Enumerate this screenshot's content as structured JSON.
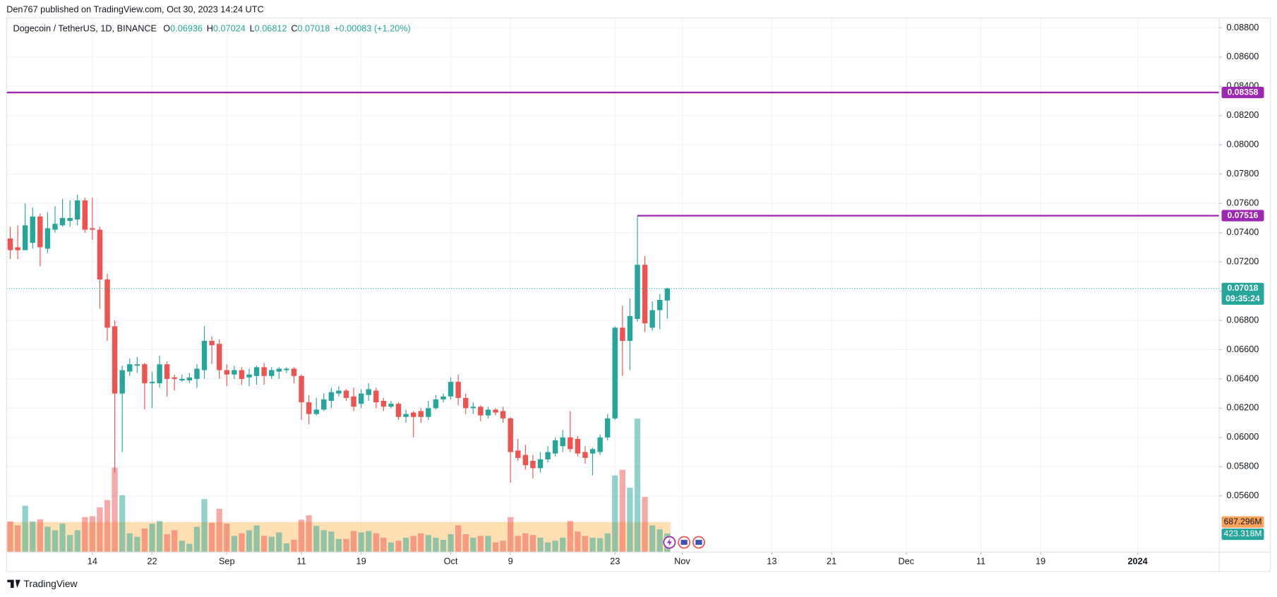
{
  "header": {
    "published": "Den767 published on TradingView.com, Oct 30, 2023 14:24 UTC",
    "symbol": "Dogecoin / TetherUS, 1D, BINANCE",
    "ohlc_labels": [
      "O",
      "H",
      "L",
      "C"
    ],
    "change": "+0.00083 (+1.20%)"
  },
  "footer": {
    "brand": "TradingView"
  },
  "chart_data": {
    "type": "candlestick",
    "up_color": "#26a69a",
    "down_color": "#ef5350",
    "x": [
      "2023-08-03",
      "2023-08-04",
      "2023-08-05",
      "2023-08-06",
      "2023-08-07",
      "2023-08-08",
      "2023-08-09",
      "2023-08-10",
      "2023-08-11",
      "2023-08-12",
      "2023-08-13",
      "2023-08-14",
      "2023-08-15",
      "2023-08-16",
      "2023-08-17",
      "2023-08-18",
      "2023-08-19",
      "2023-08-20",
      "2023-08-21",
      "2023-08-22",
      "2023-08-23",
      "2023-08-24",
      "2023-08-25",
      "2023-08-26",
      "2023-08-27",
      "2023-08-28",
      "2023-08-29",
      "2023-08-30",
      "2023-08-31",
      "2023-09-01",
      "2023-09-02",
      "2023-09-03",
      "2023-09-04",
      "2023-09-05",
      "2023-09-06",
      "2023-09-07",
      "2023-09-08",
      "2023-09-09",
      "2023-09-10",
      "2023-09-11",
      "2023-09-12",
      "2023-09-13",
      "2023-09-14",
      "2023-09-15",
      "2023-09-16",
      "2023-09-17",
      "2023-09-18",
      "2023-09-19",
      "2023-09-20",
      "2023-09-21",
      "2023-09-22",
      "2023-09-23",
      "2023-09-24",
      "2023-09-25",
      "2023-09-26",
      "2023-09-27",
      "2023-09-28",
      "2023-09-29",
      "2023-09-30",
      "2023-10-01",
      "2023-10-02",
      "2023-10-03",
      "2023-10-04",
      "2023-10-05",
      "2023-10-06",
      "2023-10-07",
      "2023-10-08",
      "2023-10-09",
      "2023-10-10",
      "2023-10-11",
      "2023-10-12",
      "2023-10-13",
      "2023-10-14",
      "2023-10-15",
      "2023-10-16",
      "2023-10-17",
      "2023-10-18",
      "2023-10-19",
      "2023-10-20",
      "2023-10-21",
      "2023-10-22",
      "2023-10-23",
      "2023-10-24",
      "2023-10-25",
      "2023-10-26",
      "2023-10-27",
      "2023-10-28",
      "2023-10-29",
      "2023-10-30"
    ],
    "open": [
      0.0736,
      0.073,
      0.0728,
      0.0733,
      0.0751,
      0.0729,
      0.0742,
      0.0745,
      0.0748,
      0.0749,
      0.0762,
      0.0743,
      0.0742,
      0.0708,
      0.0676,
      0.063,
      0.0645,
      0.0649,
      0.065,
      0.0637,
      0.0637,
      0.065,
      0.0641,
      0.0639,
      0.0639,
      0.064,
      0.0646,
      0.0666,
      0.0664,
      0.0646,
      0.0643,
      0.0646,
      0.0641,
      0.0642,
      0.0648,
      0.0642,
      0.0645,
      0.0646,
      0.0647,
      0.0642,
      0.0624,
      0.0616,
      0.0619,
      0.0625,
      0.063,
      0.0632,
      0.0628,
      0.0623,
      0.0629,
      0.0632,
      0.0625,
      0.0621,
      0.0623,
      0.0614,
      0.0617,
      0.0618,
      0.0614,
      0.062,
      0.0626,
      0.0628,
      0.0638,
      0.0627,
      0.062,
      0.0621,
      0.0615,
      0.0619,
      0.0618,
      0.0613,
      0.0591,
      0.0588,
      0.0584,
      0.0579,
      0.0585,
      0.0589,
      0.0594,
      0.06,
      0.0599,
      0.059,
      0.0589,
      0.059,
      0.06,
      0.0613,
      0.0675,
      0.0666,
      0.0681,
      0.0718,
      0.0675,
      0.0687,
      0.06936
    ],
    "high": [
      0.0744,
      0.0745,
      0.076,
      0.0757,
      0.0753,
      0.0754,
      0.0758,
      0.0763,
      0.0762,
      0.0766,
      0.0764,
      0.0764,
      0.0744,
      0.0712,
      0.068,
      0.0649,
      0.0654,
      0.0655,
      0.0651,
      0.0645,
      0.0656,
      0.0652,
      0.0643,
      0.0643,
      0.0644,
      0.065,
      0.0676,
      0.0669,
      0.0667,
      0.065,
      0.0649,
      0.0648,
      0.0647,
      0.0649,
      0.0651,
      0.0648,
      0.0648,
      0.0648,
      0.0648,
      0.0643,
      0.0629,
      0.0627,
      0.063,
      0.0634,
      0.0635,
      0.0633,
      0.0634,
      0.0633,
      0.0637,
      0.0634,
      0.0627,
      0.0625,
      0.0624,
      0.0619,
      0.0618,
      0.062,
      0.0625,
      0.0629,
      0.063,
      0.0641,
      0.0643,
      0.063,
      0.0624,
      0.0622,
      0.0621,
      0.062,
      0.0621,
      0.0614,
      0.0599,
      0.0595,
      0.0588,
      0.059,
      0.0594,
      0.06,
      0.0605,
      0.0618,
      0.0601,
      0.0594,
      0.0593,
      0.0602,
      0.0616,
      0.0676,
      0.069,
      0.0695,
      0.07516,
      0.0724,
      0.0693,
      0.0698,
      0.07024
    ],
    "low": [
      0.0722,
      0.0722,
      0.0728,
      0.0729,
      0.0717,
      0.0726,
      0.074,
      0.0744,
      0.0744,
      0.0745,
      0.074,
      0.0735,
      0.0688,
      0.0666,
      0.0576,
      0.059,
      0.0642,
      0.0644,
      0.0619,
      0.062,
      0.0634,
      0.0628,
      0.0632,
      0.0638,
      0.0637,
      0.0634,
      0.064,
      0.065,
      0.064,
      0.0635,
      0.064,
      0.0636,
      0.0635,
      0.0636,
      0.0636,
      0.064,
      0.064,
      0.0644,
      0.0637,
      0.0612,
      0.0609,
      0.0615,
      0.0618,
      0.062,
      0.0628,
      0.0625,
      0.0618,
      0.062,
      0.0625,
      0.062,
      0.0618,
      0.062,
      0.0612,
      0.061,
      0.06,
      0.061,
      0.0612,
      0.0619,
      0.0624,
      0.0626,
      0.0622,
      0.0616,
      0.0616,
      0.0611,
      0.0613,
      0.0615,
      0.061,
      0.0569,
      0.0584,
      0.0578,
      0.0572,
      0.0576,
      0.0583,
      0.0587,
      0.059,
      0.059,
      0.0587,
      0.0582,
      0.0574,
      0.0588,
      0.0598,
      0.0612,
      0.0642,
      0.0646,
      0.0679,
      0.0672,
      0.0673,
      0.0674,
      0.06812
    ],
    "close": [
      0.0728,
      0.0728,
      0.0745,
      0.0751,
      0.073,
      0.0743,
      0.0746,
      0.075,
      0.075,
      0.0762,
      0.0742,
      0.0742,
      0.0708,
      0.0675,
      0.063,
      0.0646,
      0.065,
      0.065,
      0.0637,
      0.0638,
      0.065,
      0.064,
      0.064,
      0.064,
      0.0641,
      0.0647,
      0.0666,
      0.0663,
      0.0646,
      0.0643,
      0.0646,
      0.064,
      0.0643,
      0.0648,
      0.0642,
      0.0646,
      0.0647,
      0.0647,
      0.0642,
      0.0624,
      0.0616,
      0.0619,
      0.0626,
      0.0631,
      0.0632,
      0.0627,
      0.0621,
      0.063,
      0.0633,
      0.0624,
      0.0621,
      0.0623,
      0.0614,
      0.0616,
      0.0614,
      0.0614,
      0.062,
      0.0626,
      0.0628,
      0.0638,
      0.0627,
      0.062,
      0.0621,
      0.0615,
      0.0619,
      0.0617,
      0.0613,
      0.059,
      0.0586,
      0.0581,
      0.0579,
      0.0585,
      0.059,
      0.0598,
      0.06,
      0.0592,
      0.0589,
      0.0586,
      0.0592,
      0.06,
      0.0613,
      0.0675,
      0.0666,
      0.0683,
      0.0718,
      0.0678,
      0.0687,
      0.0694,
      0.07018
    ],
    "volume": {
      "values": [
        700,
        610,
        1060,
        700,
        750,
        580,
        500,
        650,
        390,
        500,
        800,
        820,
        1020,
        1190,
        1930,
        1300,
        430,
        350,
        540,
        650,
        710,
        410,
        500,
        260,
        190,
        580,
        1210,
        670,
        990,
        650,
        370,
        430,
        500,
        610,
        370,
        350,
        450,
        200,
        280,
        740,
        840,
        600,
        500,
        470,
        300,
        300,
        480,
        450,
        480,
        430,
        330,
        220,
        260,
        330,
        370,
        430,
        390,
        330,
        280,
        410,
        610,
        410,
        330,
        370,
        370,
        220,
        260,
        800,
        370,
        430,
        390,
        330,
        220,
        260,
        330,
        710,
        470,
        370,
        330,
        320,
        430,
        1750,
        1880,
        1470,
        3050,
        1260,
        610,
        520,
        423.318
      ],
      "last_label": "423.318M",
      "ma": 687.296,
      "ma_label": "687.296M",
      "up_color": "rgba(38,166,154,0.5)",
      "down_color": "rgba(239,83,80,0.5)",
      "ma_color": "rgba(255,152,0,0.3)",
      "ma_box_color": "#f8a35a"
    },
    "hlines": [
      {
        "value": 0.08358,
        "color": "#9c27b0"
      },
      {
        "value": 0.07516,
        "color": "#9c27b0",
        "start": "2023-10-26"
      }
    ],
    "countdown": "09:35:24",
    "ylim": [
      0.05216,
      0.08867
    ],
    "yticks": [
      {
        "value": 0.056,
        "label": "0.05600"
      },
      {
        "value": 0.058,
        "label": "0.05800"
      },
      {
        "value": 0.06,
        "label": "0.06000"
      },
      {
        "value": 0.062,
        "label": "0.06200"
      },
      {
        "value": 0.064,
        "label": "0.06400"
      },
      {
        "value": 0.066,
        "label": "0.06600"
      },
      {
        "value": 0.068,
        "label": "0.06800"
      },
      {
        "value": 0.07,
        "label": "0.07000"
      },
      {
        "value": 0.072,
        "label": "0.07200"
      },
      {
        "value": 0.074,
        "label": "0.07400"
      },
      {
        "value": 0.076,
        "label": "0.07600"
      },
      {
        "value": 0.078,
        "label": "0.07800"
      },
      {
        "value": 0.08,
        "label": "0.08000"
      },
      {
        "value": 0.082,
        "label": "0.08200"
      },
      {
        "value": 0.084,
        "label": "0.08400"
      },
      {
        "value": 0.086,
        "label": "0.08600"
      },
      {
        "value": 0.088,
        "label": "0.08800"
      }
    ],
    "xlim": [
      "2023-08-02T12:00",
      "2024-01-11T22:00"
    ],
    "xticks": [
      {
        "value": "2023-08-14",
        "label": "14"
      },
      {
        "value": "2023-08-22",
        "label": "22"
      },
      {
        "value": "2023-09-01",
        "label": "Sep"
      },
      {
        "value": "2023-09-11",
        "label": "11"
      },
      {
        "value": "2023-09-19",
        "label": "19"
      },
      {
        "value": "2023-10-01",
        "label": "Oct"
      },
      {
        "value": "2023-10-09",
        "label": "9"
      },
      {
        "value": "2023-10-23",
        "label": "23"
      },
      {
        "value": "2023-11-01",
        "label": "Nov"
      },
      {
        "value": "2023-11-13",
        "label": "13"
      },
      {
        "value": "2023-11-21",
        "label": "21"
      },
      {
        "value": "2023-12-01",
        "label": "Dec"
      },
      {
        "value": "2023-12-11",
        "label": "11"
      },
      {
        "value": "2023-12-19",
        "label": "19"
      },
      {
        "value": "2024-01-01",
        "label": "2024"
      }
    ],
    "grid": true
  }
}
